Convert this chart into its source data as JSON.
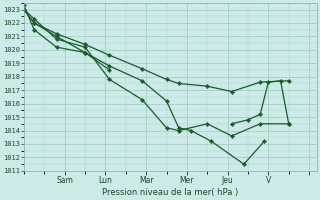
{
  "bg_color": "#cceae8",
  "grid_color": "#99ccbb",
  "line_color": "#1a5c2a",
  "marker_color": "#1a5c2a",
  "xlabel": "Pression niveau de la mer( hPa )",
  "ylim": [
    1011,
    1023.5
  ],
  "yticks": [
    1011,
    1012,
    1013,
    1014,
    1015,
    1016,
    1017,
    1018,
    1019,
    1020,
    1021,
    1022,
    1023
  ],
  "xtick_positions": [
    1,
    2,
    3,
    4,
    5,
    6,
    7
  ],
  "xtick_labels": [
    "Sam",
    "Lun",
    "Mar",
    "Mer",
    "Jeu",
    "V",
    ""
  ],
  "xlim": [
    0,
    7.2
  ],
  "series": [
    {
      "x": [
        0.0,
        0.25,
        0.8,
        1.5,
        2.1,
        2.9,
        3.5,
        3.8,
        4.1,
        4.6,
        5.4,
        5.9
      ],
      "y": [
        1023.0,
        1022.0,
        1021.0,
        1019.8,
        1018.8,
        1017.7,
        1016.2,
        1014.2,
        1014.0,
        1013.2,
        1011.5,
        1013.2
      ]
    },
    {
      "x": [
        0.0,
        0.25,
        0.8,
        1.5,
        2.1,
        2.9,
        3.5,
        3.8,
        4.5,
        5.1,
        5.8,
        6.5
      ],
      "y": [
        1023.0,
        1022.3,
        1020.8,
        1020.2,
        1017.8,
        1016.3,
        1014.2,
        1014.0,
        1014.5,
        1013.6,
        1014.5,
        1014.5
      ]
    },
    {
      "x": [
        0.0,
        0.25,
        0.8,
        1.5,
        2.1
      ],
      "y": [
        1023.3,
        1021.5,
        1020.2,
        1019.8,
        1018.5
      ]
    },
    {
      "x": [
        0.0,
        0.25,
        0.8,
        1.5,
        2.1,
        2.9,
        3.5,
        3.8,
        4.5,
        5.1,
        5.8,
        6.5
      ],
      "y": [
        1023.0,
        1022.0,
        1021.2,
        1020.4,
        1019.6,
        1018.6,
        1017.8,
        1017.5,
        1017.3,
        1016.9,
        1017.6,
        1017.7
      ]
    },
    {
      "x": [
        5.1,
        5.5,
        5.8,
        6.0,
        6.3,
        6.5
      ],
      "y": [
        1014.5,
        1014.8,
        1015.2,
        1017.6,
        1017.7,
        1014.5
      ]
    }
  ],
  "figsize": [
    3.2,
    2.0
  ],
  "dpi": 100
}
